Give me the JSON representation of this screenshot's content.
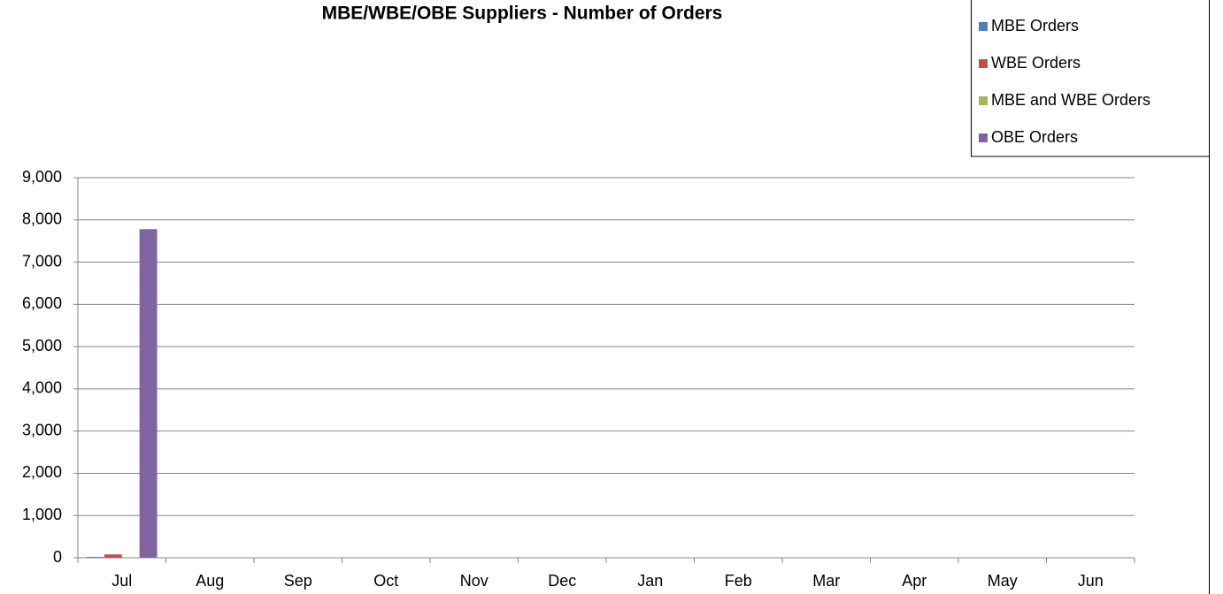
{
  "chart_data": {
    "type": "bar",
    "title": "MBE/WBE/OBE Suppliers - Number of Orders",
    "categories": [
      "Jul",
      "Aug",
      "Sep",
      "Oct",
      "Nov",
      "Dec",
      "Jan",
      "Feb",
      "Mar",
      "Apr",
      "May",
      "Jun"
    ],
    "series": [
      {
        "name": "MBE Orders",
        "color": "#4f81bd",
        "values": [
          20,
          null,
          null,
          null,
          null,
          null,
          null,
          null,
          null,
          null,
          null,
          null
        ]
      },
      {
        "name": "WBE Orders",
        "color": "#c0504d",
        "values": [
          80,
          null,
          null,
          null,
          null,
          null,
          null,
          null,
          null,
          null,
          null,
          null
        ]
      },
      {
        "name": "MBE and WBE Orders",
        "color": "#9bbb59",
        "values": [
          0,
          null,
          null,
          null,
          null,
          null,
          null,
          null,
          null,
          null,
          null,
          null
        ]
      },
      {
        "name": "OBE Orders",
        "color": "#8064a2",
        "values": [
          7780,
          null,
          null,
          null,
          null,
          null,
          null,
          null,
          null,
          null,
          null,
          null
        ]
      }
    ],
    "ylim": [
      0,
      9000
    ],
    "yticks": [
      0,
      {
        "value": 1000,
        "label": "1,000"
      },
      {
        "value": 2000,
        "label": "2,000"
      },
      {
        "value": 3000,
        "label": "3,000"
      },
      {
        "value": 4000,
        "label": "4,000"
      },
      {
        "value": 5000,
        "label": "5,000"
      },
      {
        "value": 6000,
        "label": "6,000"
      },
      {
        "value": 7000,
        "label": "7,000"
      },
      {
        "value": 8000,
        "label": "8,000"
      },
      {
        "value": 9000,
        "label": "9,000"
      }
    ],
    "grid": true,
    "legend": "top-right"
  }
}
